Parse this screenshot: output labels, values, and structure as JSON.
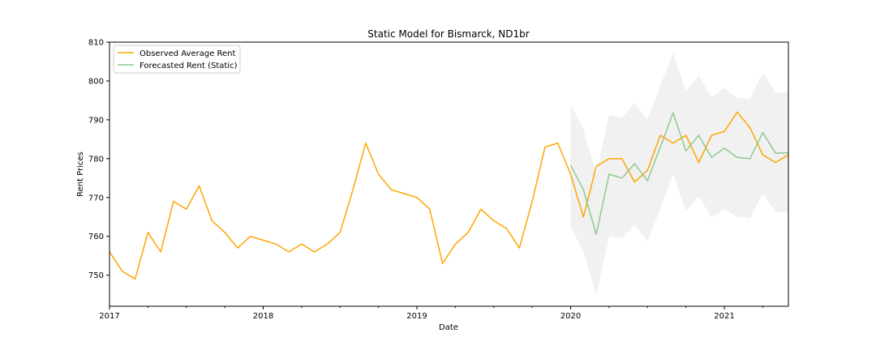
{
  "chart_data": {
    "type": "line",
    "title": "Static Model for Bismarck, ND1br",
    "xlabel": "Date",
    "ylabel": "Rent Prices",
    "x_ticks": [
      "2017",
      "2018",
      "2019",
      "2020",
      "2021"
    ],
    "y_ticks": [
      750,
      760,
      770,
      780,
      790,
      800,
      810
    ],
    "xlim": [
      "2017-01",
      "2021-06"
    ],
    "ylim": [
      742,
      810
    ],
    "grid": false,
    "legend_position": "top-left",
    "colors": {
      "observed": "#FFA500",
      "forecast": "#8FC98F",
      "band": "#E6E6E6"
    },
    "series": [
      {
        "name": "Observed Average Rent",
        "x": [
          "2017-01",
          "2017-02",
          "2017-03",
          "2017-04",
          "2017-05",
          "2017-06",
          "2017-07",
          "2017-08",
          "2017-09",
          "2017-10",
          "2017-11",
          "2017-12",
          "2018-01",
          "2018-02",
          "2018-03",
          "2018-04",
          "2018-05",
          "2018-06",
          "2018-07",
          "2018-08",
          "2018-09",
          "2018-10",
          "2018-11",
          "2018-12",
          "2019-01",
          "2019-02",
          "2019-03",
          "2019-04",
          "2019-05",
          "2019-06",
          "2019-07",
          "2019-08",
          "2019-09",
          "2019-10",
          "2019-11",
          "2019-12",
          "2020-01",
          "2020-02",
          "2020-03",
          "2020-04",
          "2020-05",
          "2020-06",
          "2020-07",
          "2020-08",
          "2020-09",
          "2020-10",
          "2020-11",
          "2020-12",
          "2021-01",
          "2021-02",
          "2021-03",
          "2021-04",
          "2021-05",
          "2021-06"
        ],
        "values": [
          756,
          751,
          749,
          761,
          756,
          769,
          767,
          773,
          764,
          761,
          757,
          760,
          759,
          758,
          756,
          758,
          756,
          758,
          761,
          772,
          784,
          776,
          772,
          771,
          770,
          767,
          753,
          758,
          761,
          767,
          764,
          762,
          757,
          769,
          783,
          784,
          776,
          765,
          778,
          780,
          780,
          774,
          777,
          786,
          784,
          786,
          779,
          786,
          787,
          792,
          788,
          781,
          779,
          781
        ]
      },
      {
        "name": "Forecasted Rent (Static)",
        "x": [
          "2020-01",
          "2020-02",
          "2020-03",
          "2020-04",
          "2020-05",
          "2020-06",
          "2020-07",
          "2020-08",
          "2020-09",
          "2020-10",
          "2020-11",
          "2020-12",
          "2021-01",
          "2021-02",
          "2021-03",
          "2021-04",
          "2021-05",
          "2021-06"
        ],
        "values": [
          778.3,
          772,
          760.5,
          776,
          775,
          778.7,
          774.3,
          783,
          791.8,
          782,
          786,
          780.3,
          782.7,
          780.3,
          780,
          786.7,
          781.4,
          781.5
        ],
        "lower": [
          762.5,
          756,
          745,
          760,
          759.5,
          763,
          758.7,
          767.2,
          776,
          766.5,
          770.3,
          764.8,
          767,
          765,
          764.7,
          771,
          766.2,
          766.2
        ],
        "upper": [
          794,
          787.7,
          776,
          791.3,
          790.6,
          794.3,
          790,
          798.8,
          807.2,
          797.5,
          801.3,
          795.8,
          798.2,
          795.7,
          795.3,
          802.2,
          797,
          797
        ]
      }
    ]
  }
}
